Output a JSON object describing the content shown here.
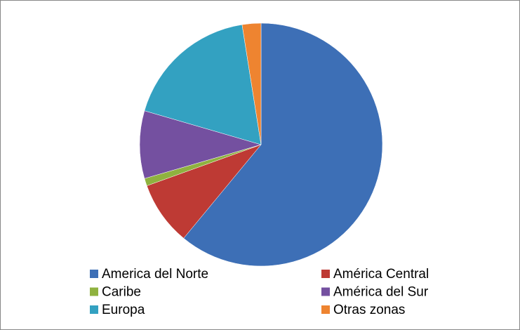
{
  "chart_data": {
    "type": "pie",
    "categories": [
      "America del Norte",
      "América Central",
      "Caribe",
      "América del Sur",
      "Europa",
      "Otras zonas"
    ],
    "values": [
      61,
      8.5,
      1,
      9,
      18,
      2.5
    ],
    "colors": [
      "#3d6fb6",
      "#be3a34",
      "#8fb23f",
      "#7450a0",
      "#33a1c1",
      "#ee8430"
    ],
    "legend": "bottom"
  }
}
